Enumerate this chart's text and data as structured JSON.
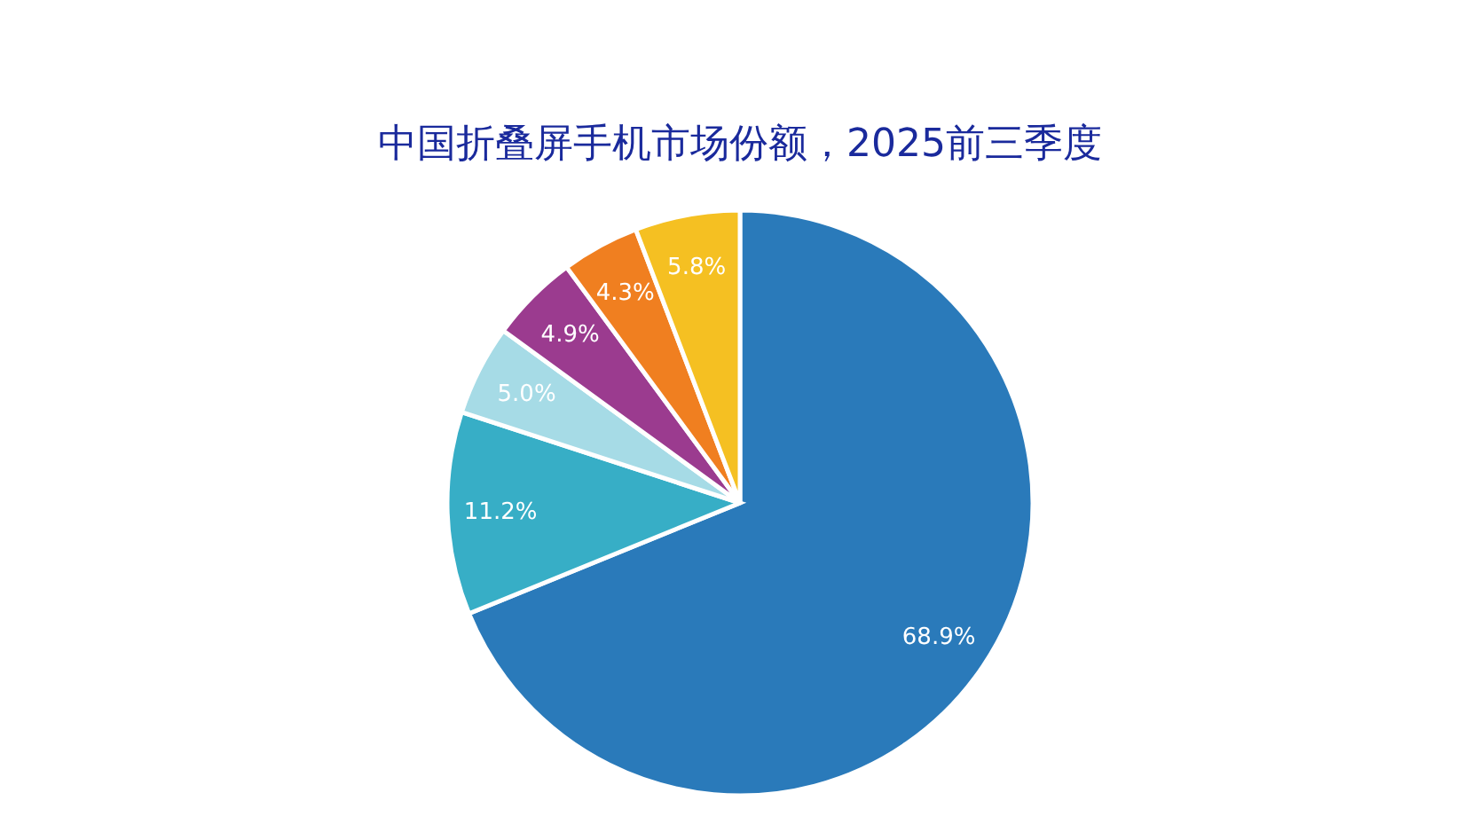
{
  "chart_data": {
    "type": "pie",
    "title": "中国折叠屏手机市场份额，2025前三季度",
    "categories": [
      null,
      null,
      null,
      null,
      null,
      null
    ],
    "values": [
      68.9,
      11.2,
      5.0,
      4.9,
      4.3,
      5.8
    ],
    "colors": [
      "#2a7aba",
      "#37aec6",
      "#a6dbe6",
      "#9b3b8f",
      "#f07f20",
      "#f5c022"
    ],
    "value_labels": [
      "68.9%",
      "11.2%",
      "5.0%",
      "4.9%",
      "4.3%",
      "5.8%"
    ],
    "legend": false
  }
}
